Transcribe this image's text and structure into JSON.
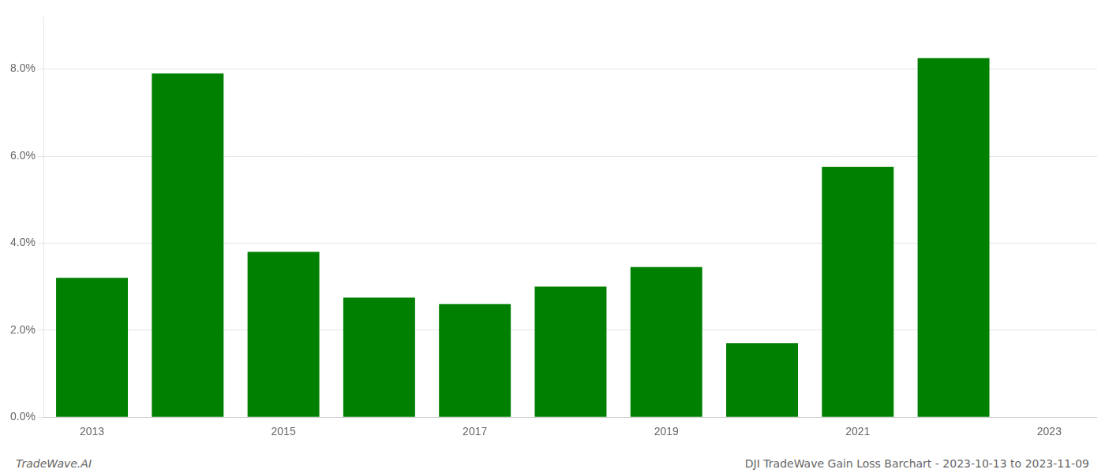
{
  "chart_data": {
    "type": "bar",
    "title": "DJI TradeWave Gain Loss Barchart - 2023-10-13 to 2023-11-09",
    "annotations": [
      "TradeWave.AI"
    ],
    "categories": [
      "2013",
      null,
      "2015",
      null,
      "2017",
      null,
      "2019",
      null,
      "2021",
      null,
      "2023"
    ],
    "values": [
      0.032,
      0.079,
      0.038,
      0.0275,
      0.026,
      0.03,
      0.0345,
      0.017,
      0.0575,
      0.0825,
      null
    ],
    "color": "#008000",
    "ylim": [
      0,
      0.092
    ],
    "yticks": [
      {
        "value": 0.0,
        "label": "0.0%"
      },
      {
        "value": 0.02,
        "label": "2.0%"
      },
      {
        "value": 0.04,
        "label": "4.0%"
      },
      {
        "value": 0.06,
        "label": "6.0%"
      },
      {
        "value": 0.08,
        "label": "8.0%"
      }
    ],
    "grid": true
  }
}
